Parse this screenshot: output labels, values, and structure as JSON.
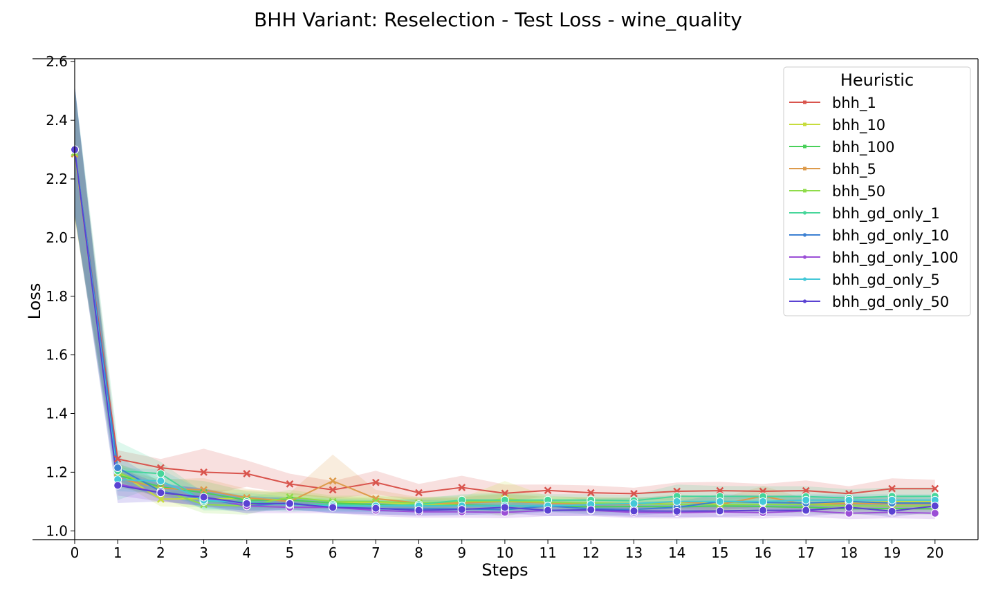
{
  "chart_data": {
    "type": "line",
    "title": "BHH Variant: Reselection - Test Loss - wine_quality",
    "xlabel": "Steps",
    "ylabel": "Loss",
    "xlim": [
      0,
      21
    ],
    "ylim": [
      0.97,
      2.61
    ],
    "xticks": [
      0,
      1,
      2,
      3,
      4,
      5,
      6,
      7,
      8,
      9,
      10,
      11,
      12,
      13,
      14,
      15,
      16,
      17,
      18,
      19,
      20
    ],
    "yticks": [
      1.0,
      1.2,
      1.4,
      1.6,
      1.8,
      2.0,
      2.2,
      2.4,
      2.6
    ],
    "ytick_labels": [
      "1.0",
      "1.2",
      "1.4",
      "1.6",
      "1.8",
      "2.0",
      "2.2",
      "2.4",
      "2.6"
    ],
    "grid": false,
    "legend": {
      "title": "Heuristic",
      "placement": "top-right"
    },
    "x": [
      0,
      1,
      2,
      3,
      4,
      5,
      6,
      7,
      8,
      9,
      10,
      11,
      12,
      13,
      14,
      15,
      16,
      17,
      18,
      19,
      20
    ],
    "series": [
      {
        "name": "bhh_1",
        "color": "#d9544d",
        "marker": "x",
        "values": [
          2.29,
          1.245,
          1.215,
          1.2,
          1.195,
          1.16,
          1.14,
          1.165,
          1.13,
          1.148,
          1.128,
          1.138,
          1.13,
          1.127,
          1.135,
          1.137,
          1.135,
          1.137,
          1.127,
          1.144,
          1.144
        ],
        "band": [
          0.22,
          0.03,
          0.03,
          0.08,
          0.045,
          0.035,
          0.03,
          0.04,
          0.03,
          0.04,
          0.03,
          0.02,
          0.025,
          0.02,
          0.03,
          0.03,
          0.025,
          0.035,
          0.025,
          0.035,
          0.03
        ]
      },
      {
        "name": "bhh_10",
        "color": "#c6dc3c",
        "marker": "x",
        "values": [
          2.29,
          1.2,
          1.108,
          1.11,
          1.11,
          1.105,
          1.095,
          1.098,
          1.09,
          1.093,
          1.11,
          1.098,
          1.095,
          1.093,
          1.097,
          1.097,
          1.098,
          1.095,
          1.097,
          1.1,
          1.1
        ],
        "band": [
          0.22,
          0.03,
          0.025,
          0.03,
          0.03,
          0.025,
          0.02,
          0.02,
          0.02,
          0.02,
          0.06,
          0.02,
          0.02,
          0.02,
          0.02,
          0.02,
          0.02,
          0.02,
          0.02,
          0.02,
          0.02
        ]
      },
      {
        "name": "bhh_100",
        "color": "#49d05a",
        "marker": "x",
        "values": [
          2.29,
          1.19,
          1.15,
          1.13,
          1.105,
          1.105,
          1.095,
          1.09,
          1.085,
          1.088,
          1.085,
          1.085,
          1.082,
          1.083,
          1.082,
          1.085,
          1.083,
          1.08,
          1.075,
          1.076,
          1.075
        ],
        "band": [
          0.22,
          0.04,
          0.03,
          0.04,
          0.03,
          0.025,
          0.02,
          0.02,
          0.02,
          0.02,
          0.02,
          0.02,
          0.02,
          0.02,
          0.02,
          0.02,
          0.02,
          0.02,
          0.02,
          0.02,
          0.02
        ]
      },
      {
        "name": "bhh_5",
        "color": "#dd9a4a",
        "marker": "x",
        "values": [
          2.285,
          1.18,
          1.145,
          1.14,
          1.113,
          1.1,
          1.17,
          1.11,
          1.095,
          1.095,
          1.1,
          1.095,
          1.09,
          1.09,
          1.1,
          1.09,
          1.118,
          1.09,
          1.093,
          1.092,
          1.092
        ],
        "band": [
          0.22,
          0.03,
          0.03,
          0.04,
          0.03,
          0.03,
          0.09,
          0.03,
          0.02,
          0.02,
          0.025,
          0.02,
          0.02,
          0.02,
          0.025,
          0.02,
          0.035,
          0.02,
          0.02,
          0.02,
          0.02
        ]
      },
      {
        "name": "bhh_50",
        "color": "#8fdc4a",
        "marker": "x",
        "values": [
          2.29,
          1.2,
          1.14,
          1.09,
          1.085,
          1.115,
          1.1,
          1.1,
          1.095,
          1.1,
          1.102,
          1.098,
          1.095,
          1.093,
          1.09,
          1.09,
          1.09,
          1.09,
          1.085,
          1.085,
          1.085
        ],
        "band": [
          0.22,
          0.03,
          0.03,
          0.03,
          0.03,
          0.025,
          0.02,
          0.02,
          0.02,
          0.02,
          0.025,
          0.02,
          0.02,
          0.02,
          0.02,
          0.02,
          0.02,
          0.02,
          0.02,
          0.02,
          0.02
        ]
      },
      {
        "name": "bhh_gd_only_1",
        "color": "#46d69a",
        "marker": "o",
        "values": [
          2.3,
          1.205,
          1.195,
          1.1,
          1.1,
          1.09,
          1.09,
          1.085,
          1.09,
          1.105,
          1.105,
          1.105,
          1.105,
          1.103,
          1.118,
          1.118,
          1.117,
          1.117,
          1.112,
          1.118,
          1.118
        ],
        "band": [
          0.22,
          0.1,
          0.04,
          0.03,
          0.03,
          0.025,
          0.02,
          0.02,
          0.02,
          0.02,
          0.025,
          0.02,
          0.02,
          0.02,
          0.04,
          0.035,
          0.035,
          0.035,
          0.03,
          0.03,
          0.03
        ]
      },
      {
        "name": "bhh_gd_only_10",
        "color": "#3c80d2",
        "marker": "o",
        "values": [
          2.3,
          1.215,
          1.135,
          1.11,
          1.085,
          1.095,
          1.08,
          1.075,
          1.075,
          1.075,
          1.072,
          1.085,
          1.075,
          1.073,
          1.08,
          1.1,
          1.097,
          1.095,
          1.1,
          1.095,
          1.095
        ],
        "band": [
          0.22,
          0.04,
          0.03,
          0.03,
          0.025,
          0.02,
          0.02,
          0.02,
          0.02,
          0.02,
          0.02,
          0.02,
          0.02,
          0.02,
          0.02,
          0.025,
          0.025,
          0.025,
          0.02,
          0.02,
          0.02
        ]
      },
      {
        "name": "bhh_gd_only_100",
        "color": "#9b4ed6",
        "marker": "o",
        "values": [
          2.3,
          1.16,
          1.13,
          1.115,
          1.085,
          1.08,
          1.08,
          1.07,
          1.065,
          1.065,
          1.063,
          1.07,
          1.07,
          1.063,
          1.062,
          1.065,
          1.062,
          1.068,
          1.06,
          1.063,
          1.06
        ],
        "band": [
          0.22,
          0.04,
          0.03,
          0.03,
          0.025,
          0.02,
          0.02,
          0.02,
          0.02,
          0.02,
          0.02,
          0.02,
          0.02,
          0.02,
          0.02,
          0.02,
          0.02,
          0.02,
          0.02,
          0.02,
          0.02
        ]
      },
      {
        "name": "bhh_gd_only_5",
        "color": "#44c8d8",
        "marker": "o",
        "values": [
          2.3,
          1.175,
          1.17,
          1.105,
          1.095,
          1.09,
          1.085,
          1.085,
          1.085,
          1.085,
          1.085,
          1.085,
          1.09,
          1.093,
          1.1,
          1.1,
          1.1,
          1.105,
          1.105,
          1.105,
          1.105
        ],
        "band": [
          0.22,
          0.04,
          0.04,
          0.03,
          0.025,
          0.02,
          0.02,
          0.02,
          0.02,
          0.02,
          0.02,
          0.02,
          0.02,
          0.02,
          0.02,
          0.02,
          0.02,
          0.02,
          0.02,
          0.02,
          0.02
        ]
      },
      {
        "name": "bhh_gd_only_50",
        "color": "#5a42d2",
        "marker": "o",
        "values": [
          2.3,
          1.155,
          1.13,
          1.115,
          1.093,
          1.093,
          1.08,
          1.077,
          1.07,
          1.073,
          1.08,
          1.07,
          1.072,
          1.068,
          1.067,
          1.068,
          1.07,
          1.07,
          1.08,
          1.067,
          1.085
        ],
        "band": [
          0.22,
          0.06,
          0.03,
          0.03,
          0.025,
          0.02,
          0.02,
          0.02,
          0.02,
          0.02,
          0.02,
          0.02,
          0.02,
          0.02,
          0.02,
          0.02,
          0.02,
          0.02,
          0.02,
          0.02,
          0.02
        ]
      }
    ]
  }
}
